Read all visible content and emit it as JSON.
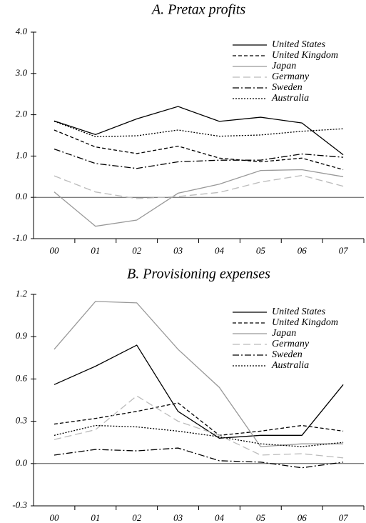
{
  "chart_data": [
    {
      "type": "line",
      "title": "A. Pretax profits",
      "categories": [
        "00",
        "01",
        "02",
        "03",
        "04",
        "05",
        "06",
        "07"
      ],
      "ylim": [
        -1,
        4
      ],
      "yticks": [
        {
          "value": -1,
          "label": "-1.0"
        },
        {
          "value": 0,
          "label": "0.0"
        },
        {
          "value": 1,
          "label": "1.0"
        },
        {
          "value": 2,
          "label": "2.0"
        },
        {
          "value": 3,
          "label": "3.0"
        },
        {
          "value": 4,
          "label": "4.0"
        }
      ],
      "series": [
        {
          "name": "United States",
          "color": "#000000",
          "dash": "solid",
          "values": [
            1.85,
            1.52,
            1.9,
            2.2,
            1.84,
            1.94,
            1.8,
            1.03
          ]
        },
        {
          "name": "United Kingdom",
          "color": "#000000",
          "dash": "dashed",
          "values": [
            1.63,
            1.22,
            1.06,
            1.24,
            0.95,
            0.86,
            0.95,
            0.67
          ]
        },
        {
          "name": "Japan",
          "color": "#999999",
          "dash": "solid",
          "values": [
            0.13,
            -0.7,
            -0.55,
            0.1,
            0.32,
            0.65,
            0.67,
            0.5
          ]
        },
        {
          "name": "Germany",
          "color": "#bbbbbb",
          "dash": "longdash",
          "values": [
            0.52,
            0.13,
            -0.03,
            0.02,
            0.12,
            0.37,
            0.53,
            0.27
          ]
        },
        {
          "name": "Sweden",
          "color": "#000000",
          "dash": "dashdot",
          "values": [
            1.17,
            0.82,
            0.7,
            0.86,
            0.9,
            0.9,
            1.05,
            0.97
          ]
        },
        {
          "name": "Australia",
          "color": "#000000",
          "dash": "dotted",
          "values": [
            1.84,
            1.47,
            1.49,
            1.63,
            1.48,
            1.51,
            1.6,
            1.66
          ]
        }
      ]
    },
    {
      "type": "line",
      "title": "B. Provisioning expenses",
      "categories": [
        "00",
        "01",
        "02",
        "03",
        "04",
        "05",
        "06",
        "07"
      ],
      "ylim": [
        -0.3,
        1.2
      ],
      "yticks": [
        {
          "value": -0.3,
          "label": "-0.3"
        },
        {
          "value": 0,
          "label": "0.0"
        },
        0.3,
        0.6,
        0.9,
        1.2
      ],
      "series": [
        {
          "name": "United States",
          "color": "#000000",
          "dash": "solid",
          "values": [
            0.56,
            0.69,
            0.84,
            0.37,
            0.18,
            0.2,
            0.2,
            0.56
          ]
        },
        {
          "name": "United Kingdom",
          "color": "#000000",
          "dash": "dashed",
          "values": [
            0.28,
            0.32,
            0.37,
            0.43,
            0.2,
            0.23,
            0.27,
            0.23
          ]
        },
        {
          "name": "Japan",
          "color": "#999999",
          "dash": "solid",
          "values": [
            0.81,
            1.15,
            1.14,
            0.81,
            0.54,
            0.12,
            0.14,
            0.14
          ]
        },
        {
          "name": "Germany",
          "color": "#bbbbbb",
          "dash": "longdash",
          "values": [
            0.17,
            0.24,
            0.48,
            0.3,
            0.2,
            0.06,
            0.07,
            0.04
          ]
        },
        {
          "name": "Sweden",
          "color": "#000000",
          "dash": "dashdot",
          "values": [
            0.06,
            0.1,
            0.09,
            0.11,
            0.02,
            0.01,
            -0.03,
            0.01
          ]
        },
        {
          "name": "Australia",
          "color": "#000000",
          "dash": "dotted",
          "values": [
            0.2,
            0.27,
            0.26,
            0.23,
            0.19,
            0.14,
            0.12,
            0.15
          ]
        }
      ]
    }
  ]
}
